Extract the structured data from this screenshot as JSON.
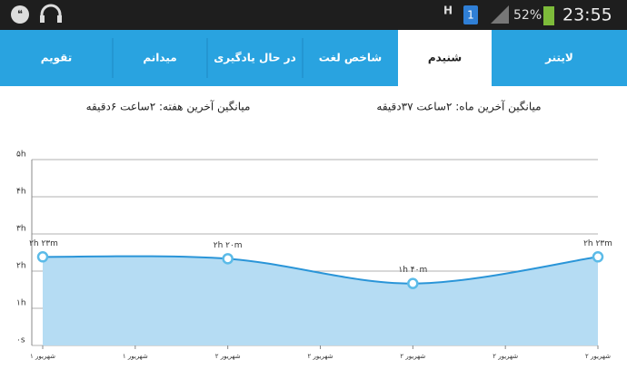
{
  "status_bar": {
    "network": "H",
    "sim": "1",
    "battery": "52%",
    "time": "23:55"
  },
  "tabs": [
    "تقویم",
    "میدانم",
    "در حال یادگیری",
    "شاخص لغت",
    "شنیدم",
    "لایتنر"
  ],
  "active_tab": 4,
  "stats": [
    "میانگین آخرین هفته: ۲ساعت ۶دقیقه",
    "میانگین آخرین ماه: ۲ساعت ۳۷دقیقه"
  ],
  "chart_data": {
    "type": "line",
    "x": [
      0,
      2,
      4,
      6
    ],
    "values": [
      2.383,
      2.333,
      1.667,
      2.383
    ],
    "value_labels": [
      "۲h ۲۳m",
      "۲h ۲۰m",
      "۱h ۴۰m",
      "۲h ۲۳m"
    ],
    "color": "#2a95d8",
    "fill": "#b5dcf3",
    "xlim": [
      0,
      6
    ],
    "xticks": [
      {
        "value": 0,
        "label": "۱ شهریور"
      },
      {
        "value": 1,
        "label": "۱ شهریور"
      },
      {
        "value": 2,
        "label": "۲ شهریور"
      },
      {
        "value": 3,
        "label": "۲ شهریور"
      },
      {
        "value": 4,
        "label": "۲ شهریور"
      },
      {
        "value": 5,
        "label": "۲ شهریور"
      },
      {
        "value": 6,
        "label": "۲ شهریور"
      }
    ],
    "ylim": [
      0,
      5
    ],
    "yticks": [
      {
        "value": 0,
        "label": "۰s"
      },
      {
        "value": 1,
        "label": "۱h"
      },
      {
        "value": 2,
        "label": "۲h"
      },
      {
        "value": 3,
        "label": "۳h"
      },
      {
        "value": 4,
        "label": "۴h"
      },
      {
        "value": 5,
        "label": "۵h"
      }
    ],
    "grid": true
  }
}
